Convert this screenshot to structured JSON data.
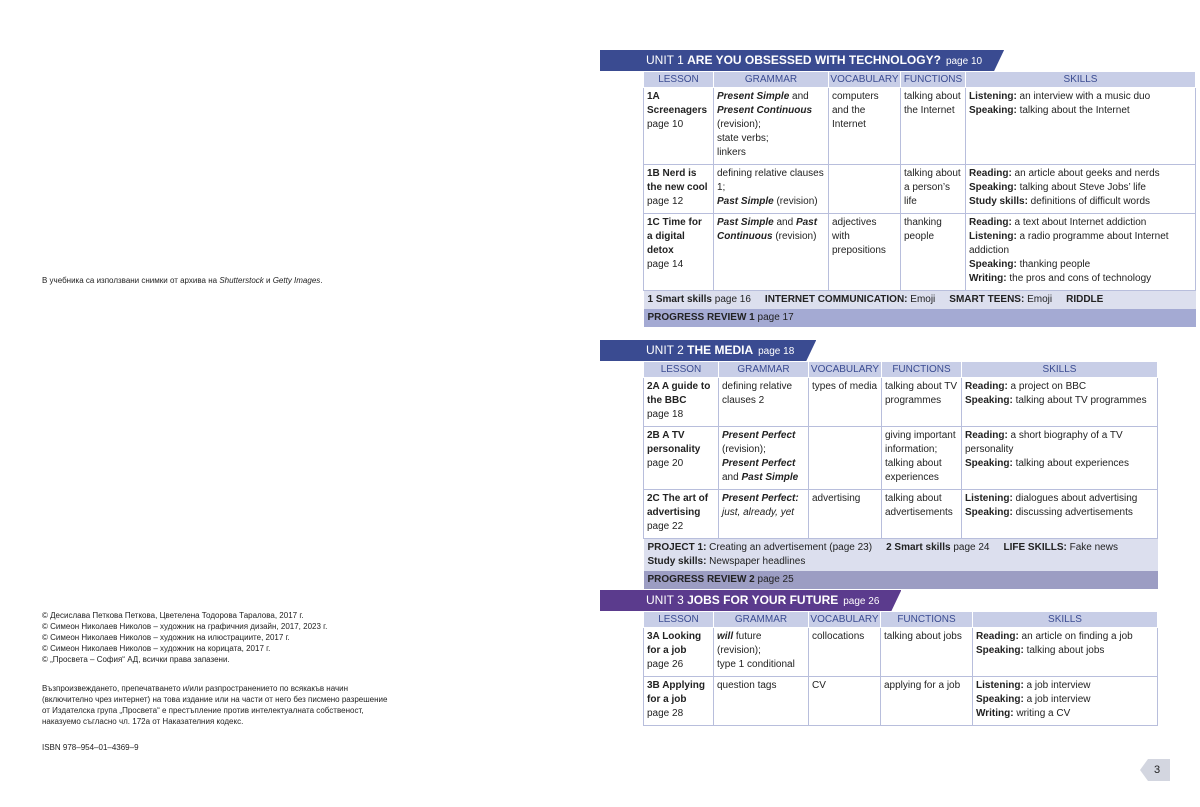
{
  "credits_note": [
    "В учебника са използвани снимки от архива на ",
    {
      "text": "Shutterstock",
      "style": "i"
    },
    " и ",
    {
      "text": "Getty Images",
      "style": "i"
    },
    "."
  ],
  "copyright": [
    "© Десислава Петкова Петкова, Цветелена Тодорова Таралова, 2017 г.",
    "© Симеон Николаев Николов – художник на графичния дизайн, 2017, 2023 г.",
    "© Симеон Николаев Николов – художник на илюстрациите, 2017 г.",
    "© Симеон Николаев Николов – художник на корицата, 2017 г.",
    "© „Просвета – София“ АД, всички права запазени."
  ],
  "legal": [
    "Възпроизвеждането, препечатването и/или разпространението по всякакъв начин",
    "(включително чрез интернет) на това издание или на части от него без писмено разрешение",
    "от Издателска група „Просвета“ е престъпление против интелектуалната собственост,",
    "наказуемо съгласно чл. 172а от Наказателния кодекс."
  ],
  "isbn": "ISBN 978–954–01–4369–9",
  "page_number": "3",
  "units": [
    {
      "label": "UNIT 1",
      "title": "ARE YOU OBSESSED WITH TECHNOLOGY?",
      "page": "page 10",
      "columns": [
        "LESSON",
        "GRAMMAR",
        "VOCABULARY",
        "FUNCTIONS",
        "SKILLS"
      ],
      "rows": [
        [
          [
            [
              {
                "text": "1A Screenagers",
                "style": "b"
              }
            ],
            [
              "page 10"
            ]
          ],
          [
            [
              {
                "text": "Present Simple",
                "style": "bi"
              },
              " and ",
              {
                "text": "Present Continuous",
                "style": "bi"
              },
              " (revision);"
            ],
            [
              "state verbs;"
            ],
            [
              "linkers"
            ]
          ],
          [
            [
              "computers and the Internet"
            ]
          ],
          [
            [
              "talking about the Internet"
            ]
          ],
          [
            [
              {
                "text": "Listening:",
                "style": "b"
              },
              " an interview with a music duo"
            ],
            [
              {
                "text": "Speaking:",
                "style": "b"
              },
              " talking about the Internet"
            ]
          ]
        ],
        [
          [
            [
              {
                "text": "1B Nerd is the new cool",
                "style": "b"
              }
            ],
            [
              "page 12"
            ]
          ],
          [
            [
              "defining relative clauses 1;"
            ],
            [
              {
                "text": "Past Simple",
                "style": "bi"
              },
              " (revision)"
            ]
          ],
          [],
          [
            [
              "talking about a person’s life"
            ]
          ],
          [
            [
              {
                "text": "Reading:",
                "style": "b"
              },
              " an article about geeks and nerds"
            ],
            [
              {
                "text": "Speaking:",
                "style": "b"
              },
              " talking about Steve Jobs’ life"
            ],
            [
              {
                "text": "Study skills:",
                "style": "b"
              },
              " definitions of difficult words"
            ]
          ]
        ],
        [
          [
            [
              {
                "text": "1C Time for a digital detox",
                "style": "b"
              }
            ],
            [
              "page 14"
            ]
          ],
          [
            [
              {
                "text": "Past Simple",
                "style": "bi"
              },
              " and ",
              {
                "text": "Past Continuous",
                "style": "bi"
              },
              " (revision)"
            ]
          ],
          [
            [
              "adjectives with prepositions"
            ]
          ],
          [
            [
              "thanking people"
            ]
          ],
          [
            [
              {
                "text": "Reading:",
                "style": "b"
              },
              " a text about Internet addiction"
            ],
            [
              {
                "text": "Listening:",
                "style": "b"
              },
              " a radio programme about Internet addiction"
            ],
            [
              {
                "text": "Speaking:",
                "style": "b"
              },
              " thanking people"
            ],
            [
              {
                "text": "Writing:",
                "style": "b"
              },
              " the pros and cons of technology"
            ]
          ]
        ]
      ],
      "footer": [
        [
          [
            {
              "text": "1 Smart skills",
              "style": "b"
            },
            " page 16"
          ],
          [
            {
              "text": "INTERNET COMMUNICATION:",
              "style": "b"
            },
            " Emoji"
          ],
          [
            {
              "text": "SMART TEENS:",
              "style": "b"
            },
            " Emoji"
          ],
          [
            {
              "text": "RIDDLE",
              "style": "b"
            }
          ]
        ]
      ],
      "review": [
        {
          "text": "PROGRESS REVIEW 1",
          "style": "b"
        },
        " page 17"
      ]
    },
    {
      "label": "UNIT 2",
      "title": "THE MEDIA",
      "page": "page 18",
      "columns": [
        "LESSON",
        "GRAMMAR",
        "VOCABULARY",
        "FUNCTIONS",
        "SKILLS"
      ],
      "rows": [
        [
          [
            [
              {
                "text": "2A A guide to the BBC",
                "style": "b"
              }
            ],
            [
              "page 18"
            ]
          ],
          [
            [
              "defining relative clauses 2"
            ]
          ],
          [
            [
              "types of media"
            ]
          ],
          [
            [
              "talking about TV programmes"
            ]
          ],
          [
            [
              {
                "text": "Reading:",
                "style": "b"
              },
              " a project on BBC"
            ],
            [
              {
                "text": "Speaking:",
                "style": "b"
              },
              " talking about TV programmes"
            ]
          ]
        ],
        [
          [
            [
              {
                "text": "2B A TV personality",
                "style": "b"
              }
            ],
            [
              "page 20"
            ]
          ],
          [
            [
              {
                "text": "Present Perfect",
                "style": "bi"
              }
            ],
            [
              "(revision);"
            ],
            [
              {
                "text": "Present Perfect",
                "style": "bi"
              }
            ],
            [
              "and ",
              {
                "text": "Past Simple",
                "style": "bi"
              }
            ]
          ],
          [],
          [
            [
              "giving important information;"
            ],
            [
              "talking about experiences"
            ]
          ],
          [
            [
              {
                "text": "Reading:",
                "style": "b"
              },
              " a short biography of a TV personality"
            ],
            [
              {
                "text": "Speaking:",
                "style": "b"
              },
              " talking about experiences"
            ]
          ]
        ],
        [
          [
            [
              {
                "text": "2C The art of advertising",
                "style": "b"
              }
            ],
            [
              "page 22"
            ]
          ],
          [
            [
              {
                "text": "Present Perfect:",
                "style": "bi"
              }
            ],
            [
              {
                "text": "just, already, yet",
                "style": "i"
              }
            ]
          ],
          [
            [
              "advertising"
            ]
          ],
          [
            [
              "talking about advertisements"
            ]
          ],
          [
            [
              {
                "text": "Listening:",
                "style": "b"
              },
              " dialogues about advertising"
            ],
            [
              {
                "text": "Speaking:",
                "style": "b"
              },
              " discussing advertisements"
            ]
          ]
        ]
      ],
      "footer": [
        [
          [
            {
              "text": "PROJECT 1:",
              "style": "b"
            },
            " Creating an advertisement (page 23)"
          ],
          [
            {
              "text": "2 Smart skills",
              "style": "b"
            },
            " page 24"
          ],
          [
            {
              "text": "LIFE SKILLS:",
              "style": "b"
            },
            " Fake news"
          ]
        ],
        [
          [
            {
              "text": "Study skills:",
              "style": "b"
            },
            " Newspaper headlines"
          ]
        ]
      ],
      "review": [
        {
          "text": "PROGRESS REVIEW 2",
          "style": "b"
        },
        " page 25"
      ]
    },
    {
      "label": "UNIT 3",
      "title": "JOBS FOR YOUR FUTURE",
      "page": "page 26",
      "columns": [
        "LESSON",
        "GRAMMAR",
        "VOCABULARY",
        "FUNCTIONS",
        "SKILLS"
      ],
      "rows": [
        [
          [
            [
              {
                "text": "3A Looking for a job",
                "style": "b"
              }
            ],
            [
              "page 26"
            ]
          ],
          [
            [
              {
                "text": "will",
                "style": "bi"
              },
              " future (revision);"
            ],
            [
              "type 1 conditional"
            ]
          ],
          [
            [
              "collocations"
            ]
          ],
          [
            [
              "talking about jobs"
            ]
          ],
          [
            [
              {
                "text": "Reading:",
                "style": "b"
              },
              " an article on finding a job"
            ],
            [
              {
                "text": "Speaking:",
                "style": "b"
              },
              " talking about jobs"
            ]
          ]
        ],
        [
          [
            [
              {
                "text": "3B Applying for a job",
                "style": "b"
              }
            ],
            [
              "page 28"
            ]
          ],
          [
            [
              "question tags"
            ]
          ],
          [
            [
              "CV"
            ]
          ],
          [
            [
              "applying for a job"
            ]
          ],
          [
            [
              {
                "text": "Listening:",
                "style": "b"
              },
              " a job interview"
            ],
            [
              {
                "text": "Speaking:",
                "style": "b"
              },
              " a job interview"
            ],
            [
              {
                "text": "Writing:",
                "style": "b"
              },
              " writing a CV"
            ]
          ]
        ]
      ]
    }
  ]
}
